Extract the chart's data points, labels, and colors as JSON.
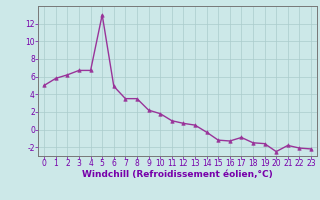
{
  "x": [
    0,
    1,
    2,
    3,
    4,
    5,
    6,
    7,
    8,
    9,
    10,
    11,
    12,
    13,
    14,
    15,
    16,
    17,
    18,
    19,
    20,
    21,
    22,
    23
  ],
  "y": [
    5.0,
    5.8,
    6.2,
    6.7,
    6.7,
    13.0,
    4.9,
    3.5,
    3.5,
    2.2,
    1.8,
    1.0,
    0.7,
    0.5,
    -0.3,
    -1.2,
    -1.3,
    -0.9,
    -1.5,
    -1.6,
    -2.5,
    -1.8,
    -2.1,
    -2.2
  ],
  "line_color": "#993399",
  "marker": "^",
  "marker_size": 2.5,
  "bg_color": "#cce8e8",
  "grid_color": "#aacccc",
  "xlabel": "Windchill (Refroidissement éolien,°C)",
  "xlabel_color": "#7700aa",
  "tick_color": "#7700aa",
  "axis_color": "#888888",
  "ylim": [
    -3,
    14
  ],
  "xlim": [
    -0.5,
    23.5
  ],
  "yticks": [
    -2,
    0,
    2,
    4,
    6,
    8,
    10,
    12
  ],
  "xticks": [
    0,
    1,
    2,
    3,
    4,
    5,
    6,
    7,
    8,
    9,
    10,
    11,
    12,
    13,
    14,
    15,
    16,
    17,
    18,
    19,
    20,
    21,
    22,
    23
  ],
  "tick_fontsize": 5.5,
  "xlabel_fontsize": 6.5,
  "ylabel_fontsize": 6.0,
  "linewidth": 1.0
}
